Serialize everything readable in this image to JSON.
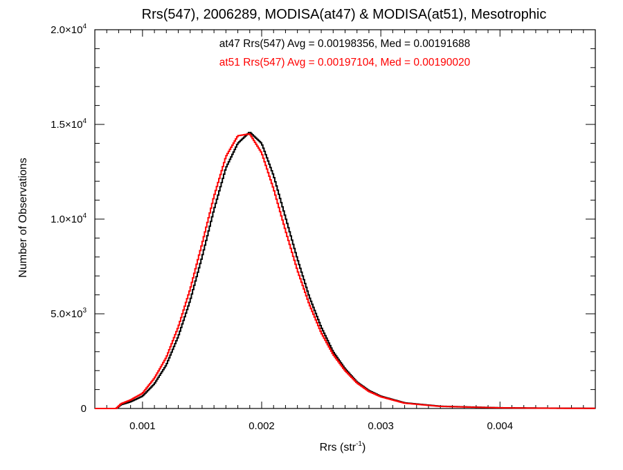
{
  "chart_data": {
    "type": "line",
    "title": "Rrs(547), 2006289, MODISA(at47) & MODISA(at51), Mesotrophic",
    "xlabel": "Rrs (str",
    "xlabel_sup": "-1",
    "xlabel_end": ")",
    "ylabel": "Number of Observations",
    "xlim": [
      0.0006,
      0.0048
    ],
    "ylim": [
      0,
      20000
    ],
    "x_ticks": [
      {
        "value": 0.001,
        "label": "0.001"
      },
      {
        "value": 0.002,
        "label": "0.002"
      },
      {
        "value": 0.003,
        "label": "0.003"
      },
      {
        "value": 0.004,
        "label": "0.004"
      }
    ],
    "y_ticks": [
      {
        "value": 0,
        "mantissa": "0",
        "exp": ""
      },
      {
        "value": 5000,
        "mantissa": "5.0×10",
        "exp": "3"
      },
      {
        "value": 10000,
        "mantissa": "1.0×10",
        "exp": "4"
      },
      {
        "value": 15000,
        "mantissa": "1.5×10",
        "exp": "4"
      },
      {
        "value": 20000,
        "mantissa": "2.0×10",
        "exp": "4"
      }
    ],
    "annotations": [
      {
        "text": "at47 Rrs(547) Avg = 0.00198356, Med = 0.00191688",
        "color": "#000000"
      },
      {
        "text": "at51 Rrs(547) Avg = 0.00197104, Med = 0.00190020",
        "color": "#ff0000"
      }
    ],
    "grid": false,
    "series": [
      {
        "name": "at47",
        "color": "#000000",
        "points": [
          [
            0.0006,
            0
          ],
          [
            0.00078,
            0
          ],
          [
            0.00082,
            200
          ],
          [
            0.0009,
            350
          ],
          [
            0.001,
            650
          ],
          [
            0.0011,
            1300
          ],
          [
            0.0012,
            2300
          ],
          [
            0.0013,
            3800
          ],
          [
            0.0014,
            5700
          ],
          [
            0.0015,
            8000
          ],
          [
            0.0016,
            10500
          ],
          [
            0.0017,
            12700
          ],
          [
            0.0018,
            14000
          ],
          [
            0.0019,
            14600
          ],
          [
            0.002,
            14000
          ],
          [
            0.0021,
            12300
          ],
          [
            0.0022,
            10100
          ],
          [
            0.0023,
            7900
          ],
          [
            0.0024,
            5900
          ],
          [
            0.0025,
            4300
          ],
          [
            0.0026,
            3000
          ],
          [
            0.0027,
            2100
          ],
          [
            0.0028,
            1400
          ],
          [
            0.0029,
            950
          ],
          [
            0.003,
            650
          ],
          [
            0.0032,
            300
          ],
          [
            0.0035,
            120
          ],
          [
            0.004,
            40
          ],
          [
            0.0045,
            15
          ],
          [
            0.0048,
            10
          ]
        ]
      },
      {
        "name": "at51",
        "color": "#ff0000",
        "points": [
          [
            0.0006,
            0
          ],
          [
            0.00078,
            0
          ],
          [
            0.00082,
            250
          ],
          [
            0.0009,
            450
          ],
          [
            0.001,
            800
          ],
          [
            0.0011,
            1600
          ],
          [
            0.0012,
            2700
          ],
          [
            0.0013,
            4300
          ],
          [
            0.0014,
            6300
          ],
          [
            0.0015,
            8700
          ],
          [
            0.0016,
            11200
          ],
          [
            0.0017,
            13300
          ],
          [
            0.0018,
            14400
          ],
          [
            0.0019,
            14500
          ],
          [
            0.002,
            13500
          ],
          [
            0.0021,
            11600
          ],
          [
            0.0022,
            9400
          ],
          [
            0.0023,
            7300
          ],
          [
            0.0024,
            5500
          ],
          [
            0.0025,
            4000
          ],
          [
            0.0026,
            2850
          ],
          [
            0.0027,
            2000
          ],
          [
            0.0028,
            1350
          ],
          [
            0.0029,
            900
          ],
          [
            0.003,
            620
          ],
          [
            0.0032,
            280
          ],
          [
            0.0035,
            110
          ],
          [
            0.004,
            35
          ],
          [
            0.0045,
            12
          ],
          [
            0.0048,
            8
          ]
        ]
      }
    ]
  }
}
